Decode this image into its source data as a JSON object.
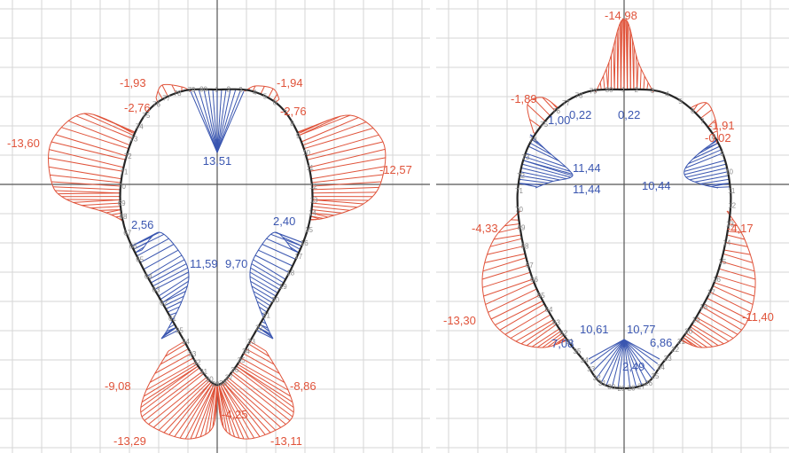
{
  "colors": {
    "negative": "#e0533a",
    "positive": "#3a56b0",
    "outline": "#262626",
    "grid": "#d6d6d6",
    "node": "#8a8a8a"
  },
  "left": {
    "labels": [
      {
        "text": "-1,93",
        "cls": "neg"
      },
      {
        "text": "-1,94",
        "cls": "neg"
      },
      {
        "text": "-2,76",
        "cls": "neg"
      },
      {
        "text": "-2,76",
        "cls": "neg"
      },
      {
        "text": "-13,60",
        "cls": "neg"
      },
      {
        "text": "-12,57",
        "cls": "neg"
      },
      {
        "text": "13,51",
        "cls": "pos"
      },
      {
        "text": "2,56",
        "cls": "pos"
      },
      {
        "text": "2,40",
        "cls": "pos"
      },
      {
        "text": "11,59",
        "cls": "pos"
      },
      {
        "text": "9,70",
        "cls": "pos"
      },
      {
        "text": "-9,08",
        "cls": "neg"
      },
      {
        "text": "-8,86",
        "cls": "neg"
      },
      {
        "text": "-4,25",
        "cls": "neg"
      },
      {
        "text": "-13,29",
        "cls": "neg"
      },
      {
        "text": "-13,11",
        "cls": "neg"
      }
    ],
    "nodes": [
      "1",
      "2",
      "3",
      "4",
      "5",
      "6",
      "7",
      "8",
      "9",
      "10",
      "11",
      "12",
      "13",
      "14",
      "15",
      "16",
      "17",
      "18",
      "19",
      "20",
      "21",
      "22",
      "23",
      "24",
      "25",
      "26",
      "27",
      "28",
      "29",
      "30",
      "31",
      "32",
      "33",
      "34",
      "35",
      "61",
      "62",
      "63",
      "64",
      "65",
      "66",
      "67",
      "68",
      "69",
      "70",
      "71",
      "72",
      "73",
      "74",
      "75",
      "76",
      "77",
      "78",
      "79",
      "80"
    ]
  },
  "right": {
    "labels": [
      {
        "text": "-14,98",
        "cls": "neg"
      },
      {
        "text": "-1,89",
        "cls": "neg"
      },
      {
        "text": "-1,91",
        "cls": "neg"
      },
      {
        "text": "-0,02",
        "cls": "neg"
      },
      {
        "text": "1,00",
        "cls": "pos"
      },
      {
        "text": "0,22",
        "cls": "pos"
      },
      {
        "text": "0,22",
        "cls": "pos"
      },
      {
        "text": "11,44",
        "cls": "pos"
      },
      {
        "text": "11,44",
        "cls": "pos"
      },
      {
        "text": "10,44",
        "cls": "pos"
      },
      {
        "text": "-4,33",
        "cls": "neg"
      },
      {
        "text": "-4,17",
        "cls": "neg"
      },
      {
        "text": "-13,30",
        "cls": "neg"
      },
      {
        "text": "-11,40",
        "cls": "neg"
      },
      {
        "text": "10,61",
        "cls": "pos"
      },
      {
        "text": "10,77",
        "cls": "pos"
      },
      {
        "text": "7,08",
        "cls": "pos"
      },
      {
        "text": "6,86",
        "cls": "pos"
      },
      {
        "text": "2,49",
        "cls": "pos"
      }
    ],
    "nodes": [
      "1",
      "2",
      "3",
      "4",
      "5",
      "6",
      "7",
      "8",
      "9",
      "10",
      "11",
      "12",
      "13",
      "14",
      "15",
      "16",
      "17",
      "18",
      "19",
      "20",
      "21",
      "22",
      "23",
      "24",
      "25",
      "26",
      "27",
      "28",
      "29",
      "30",
      "31",
      "32",
      "33",
      "34",
      "35",
      "61",
      "62",
      "63",
      "64",
      "65",
      "66",
      "67",
      "68",
      "69",
      "70",
      "71",
      "72",
      "73",
      "74",
      "75",
      "76",
      "77",
      "78",
      "79",
      "80"
    ]
  }
}
